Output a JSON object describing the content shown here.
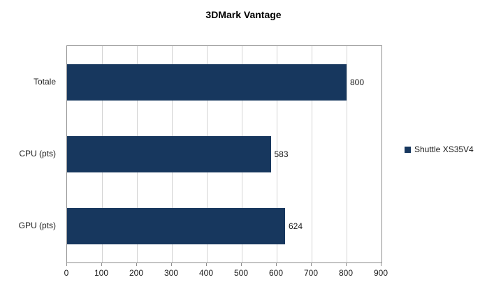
{
  "chart_data": {
    "type": "bar",
    "orientation": "horizontal",
    "title": "3DMark Vantage",
    "categories": [
      "Totale",
      "CPU (pts)",
      "GPU (pts)"
    ],
    "series": [
      {
        "name": "Shuttle XS35V4",
        "values": [
          800,
          583,
          624
        ]
      }
    ],
    "value_labels": [
      "800",
      "583",
      "624"
    ],
    "xlabel": "",
    "ylabel": "",
    "xlim": [
      0,
      900
    ],
    "xticks": [
      0,
      100,
      200,
      300,
      400,
      500,
      600,
      700,
      800,
      900
    ],
    "grid": true,
    "legend_position": "right",
    "colors": {
      "bar": "#17375E",
      "gridline": "#d4d4d4",
      "plot_border": "#8e8e8e",
      "text": "#1a1a1a"
    }
  }
}
